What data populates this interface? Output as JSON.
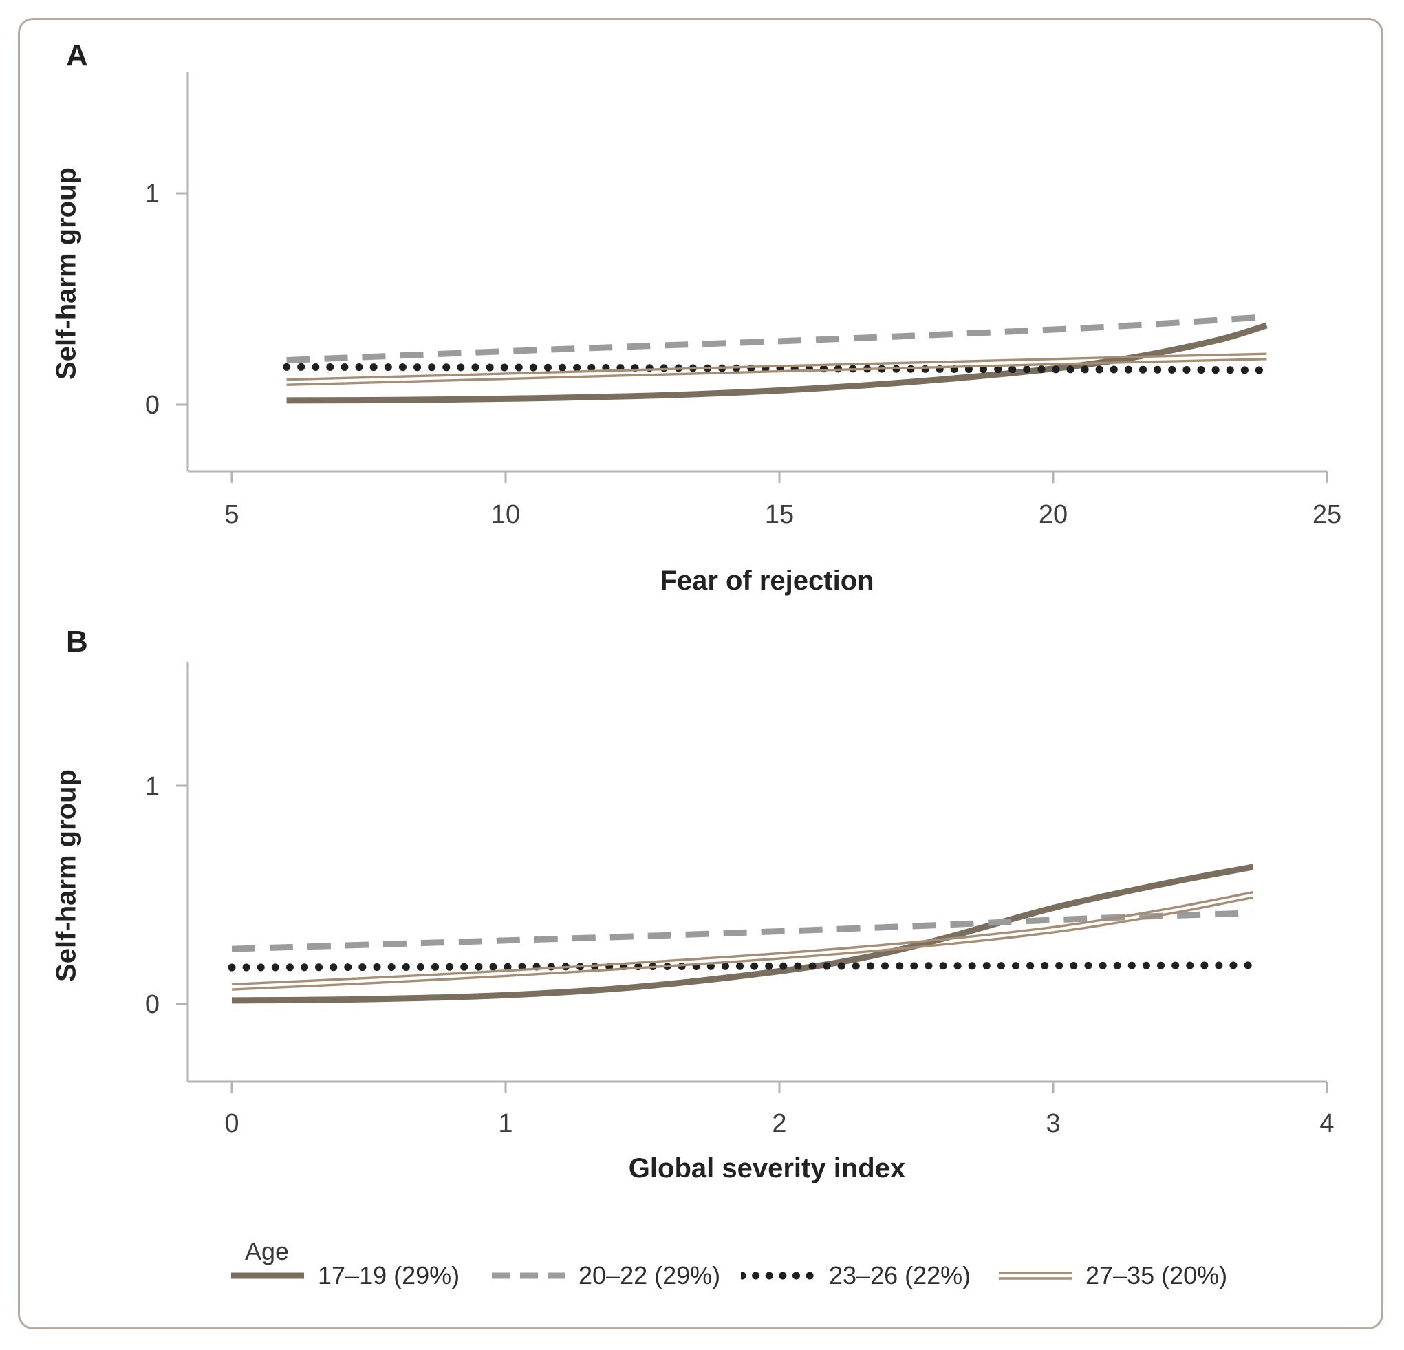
{
  "figure": {
    "panel_a_label": "A",
    "panel_b_label": "B",
    "border_color": "#b8aa9c",
    "axis_color": "#b3b3b3",
    "tick_text_color": "#3d3d3d"
  },
  "chart_data": [
    {
      "type": "line",
      "panel": "A",
      "xlabel": "Fear of rejection",
      "ylabel": "Self-harm group",
      "xticks": [
        5,
        10,
        15,
        20,
        25
      ],
      "yticks": [
        0,
        1
      ],
      "xlim": [
        4.2,
        25.1
      ],
      "ylim": [
        -0.32,
        1.57
      ],
      "grid": false,
      "legend_position": "none",
      "series": [
        {
          "name": "17–19 (29%)",
          "style": "solid-thick",
          "color": "#7a6e5e",
          "points": [
            [
              6,
              0.02
            ],
            [
              8,
              0.022
            ],
            [
              10,
              0.028
            ],
            [
              12,
              0.038
            ],
            [
              14,
              0.055
            ],
            [
              16,
              0.082
            ],
            [
              18,
              0.12
            ],
            [
              20,
              0.17
            ],
            [
              21.5,
              0.225
            ],
            [
              23,
              0.305
            ],
            [
              23.9,
              0.375
            ]
          ]
        },
        {
          "name": "20–22 (29%)",
          "style": "dashed",
          "color": "#9b9b9b",
          "points": [
            [
              6,
              0.21
            ],
            [
              9,
              0.242
            ],
            [
              12,
              0.272
            ],
            [
              15,
              0.3
            ],
            [
              18,
              0.332
            ],
            [
              21,
              0.368
            ],
            [
              23.9,
              0.415
            ]
          ]
        },
        {
          "name": "23–26 (22%)",
          "style": "dotted",
          "color": "#1f1f1f",
          "points": [
            [
              6,
              0.178
            ],
            [
              10,
              0.176
            ],
            [
              14,
              0.172
            ],
            [
              18,
              0.168
            ],
            [
              21,
              0.166
            ],
            [
              23.9,
              0.163
            ]
          ]
        },
        {
          "name": "27–35 (20%)",
          "style": "double",
          "color": "#a58e74",
          "points": [
            [
              6,
              0.106
            ],
            [
              9,
              0.127
            ],
            [
              12,
              0.149
            ],
            [
              15,
              0.17
            ],
            [
              18,
              0.19
            ],
            [
              21,
              0.21
            ],
            [
              23.9,
              0.228
            ]
          ]
        }
      ]
    },
    {
      "type": "line",
      "panel": "B",
      "xlabel": "Global severity index",
      "ylabel": "Self-harm group",
      "xticks": [
        0,
        1,
        2,
        3,
        4
      ],
      "yticks": [
        0,
        1
      ],
      "xlim": [
        -0.16,
        4.02
      ],
      "ylim": [
        -0.36,
        1.57
      ],
      "grid": false,
      "legend_position": "below",
      "series": [
        {
          "name": "17–19 (29%)",
          "style": "solid-thick",
          "color": "#7a6e5e",
          "points": [
            [
              0,
              0.016
            ],
            [
              0.5,
              0.022
            ],
            [
              1,
              0.04
            ],
            [
              1.5,
              0.08
            ],
            [
              2,
              0.15
            ],
            [
              2.3,
              0.21
            ],
            [
              2.6,
              0.3
            ],
            [
              3,
              0.44
            ],
            [
              3.4,
              0.55
            ],
            [
              3.73,
              0.628
            ]
          ]
        },
        {
          "name": "20–22 (29%)",
          "style": "dashed",
          "color": "#9b9b9b",
          "points": [
            [
              0,
              0.252
            ],
            [
              0.8,
              0.283
            ],
            [
              1.6,
              0.315
            ],
            [
              2.4,
              0.352
            ],
            [
              3.1,
              0.39
            ],
            [
              3.73,
              0.417
            ]
          ]
        },
        {
          "name": "23–26 (22%)",
          "style": "dotted",
          "color": "#1f1f1f",
          "points": [
            [
              0,
              0.167
            ],
            [
              1,
              0.17
            ],
            [
              2,
              0.173
            ],
            [
              3,
              0.175
            ],
            [
              3.73,
              0.177
            ]
          ]
        },
        {
          "name": "27–35 (20%)",
          "style": "double",
          "color": "#a58e74",
          "points": [
            [
              0,
              0.078
            ],
            [
              0.5,
              0.107
            ],
            [
              1,
              0.14
            ],
            [
              1.5,
              0.178
            ],
            [
              2,
              0.22
            ],
            [
              2.5,
              0.272
            ],
            [
              3,
              0.34
            ],
            [
              3.4,
              0.42
            ],
            [
              3.73,
              0.5
            ]
          ]
        }
      ]
    }
  ],
  "legend": {
    "title": "Age",
    "items": [
      {
        "label": "17–19 (29%)",
        "style": "solid-thick",
        "color": "#7a6e5e"
      },
      {
        "label": "20–22 (29%)",
        "style": "dashed",
        "color": "#9b9b9b"
      },
      {
        "label": "23–26 (22%)",
        "style": "dotted",
        "color": "#1f1f1f"
      },
      {
        "label": "27–35 (20%)",
        "style": "double",
        "color": "#a58e74"
      }
    ]
  }
}
